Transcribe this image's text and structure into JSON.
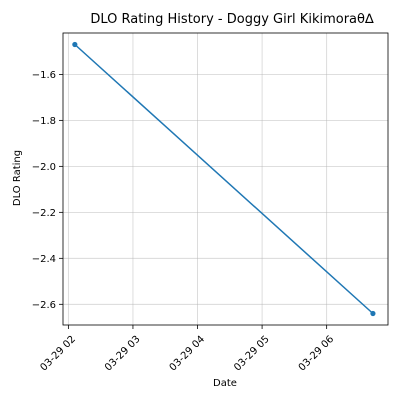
{
  "chart_data": {
    "type": "line",
    "title": "DLO Rating History - Doggy Girl Kikimoraθ∆",
    "xlabel": "Date",
    "ylabel": "DLO Rating",
    "x_ticks": [
      {
        "value": "2024-03-29T02:00",
        "label": "03-29 02"
      },
      {
        "value": "2024-03-29T03:00",
        "label": "03-29 03"
      },
      {
        "value": "2024-03-29T04:00",
        "label": "03-29 04"
      },
      {
        "value": "2024-03-29T05:00",
        "label": "03-29 05"
      },
      {
        "value": "2024-03-29T06:00",
        "label": "03-29 06"
      }
    ],
    "xlim": [
      "2024-03-29T01:55",
      "2024-03-29T06:57"
    ],
    "y_ticks": [
      {
        "value": -1.6,
        "label": "−1.6"
      },
      {
        "value": -1.8,
        "label": "−1.8"
      },
      {
        "value": -2.0,
        "label": "−2.0"
      },
      {
        "value": -2.2,
        "label": "−2.2"
      },
      {
        "value": -2.4,
        "label": "−2.4"
      },
      {
        "value": -2.6,
        "label": "−2.6"
      }
    ],
    "ylim": [
      -2.69,
      -1.42
    ],
    "grid": true,
    "series": [
      {
        "color": "#1f77b4",
        "points": [
          {
            "x": "2024-03-29T02:06",
            "y": -1.47
          },
          {
            "x": "2024-03-29T06:43",
            "y": -2.64
          }
        ]
      }
    ]
  }
}
